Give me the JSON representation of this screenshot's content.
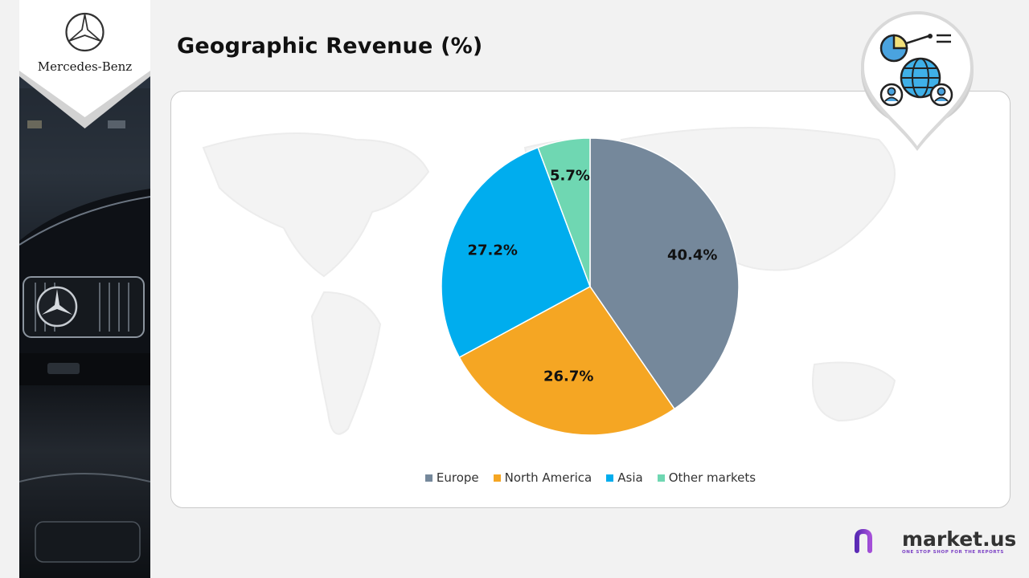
{
  "brand": {
    "name": "Mercedes-Benz"
  },
  "slide": {
    "title": "Geographic Revenue (%)"
  },
  "chart_data": {
    "type": "pie",
    "unit": "%",
    "categories": [
      "Europe",
      "North America",
      "Asia",
      "Other markets"
    ],
    "values": [
      40.4,
      26.7,
      27.2,
      5.7
    ],
    "labels": [
      "40.4%",
      "26.7%",
      "27.2%",
      "5.7%"
    ],
    "colors": [
      "#75889b",
      "#f5a623",
      "#00adee",
      "#6fd7b2"
    ],
    "legend_position": "bottom"
  },
  "icons": {
    "header": "global-analytics-icon",
    "brand": "three-pointed-star-icon"
  },
  "footer": {
    "logo_text": "market.us",
    "tagline": "ONE STOP SHOP FOR THE REPORTS"
  }
}
